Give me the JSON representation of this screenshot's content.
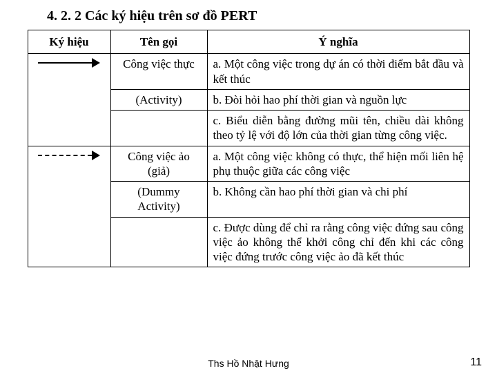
{
  "section_title": "4. 2. 2 Các ký hiệu trên sơ đồ PERT",
  "headers": {
    "symbol": "Ký hiệu",
    "name": "Tên gọi",
    "meaning": "Ý nghĩa"
  },
  "rows": {
    "activity": {
      "name1": "Công việc thực",
      "name2": "(Activity)",
      "meaning_a": "a. Một công việc trong dự án có thời điểm bắt đầu và kết thúc",
      "meaning_b": "b. Đòi hỏi hao phí thời gian và nguồn lực",
      "meaning_c": "c. Biểu diễn bằng đường mũi tên, chiều dài không theo tỷ lệ với độ lớn của thời gian từng công việc."
    },
    "dummy": {
      "name1": "Công việc ảo (giả)",
      "name2": "(Dummy Activity)",
      "meaning_a": "a. Một công việc không có thực, thể hiện mối liên hệ phụ thuộc giữa các công việc",
      "meaning_b": "b. Không cần hao phí thời gian và chi phí",
      "meaning_c": "c. Được dùng để chỉ ra rằng công việc đứng sau công việc ảo không thể khởi công chỉ đến khi các công việc đứng trước công việc ảo đã kết thúc"
    }
  },
  "footer_author": "Ths Hồ Nhật Hưng",
  "page_num": "11",
  "colors": {
    "text": "#000000",
    "bg": "#ffffff",
    "border": "#000000"
  }
}
